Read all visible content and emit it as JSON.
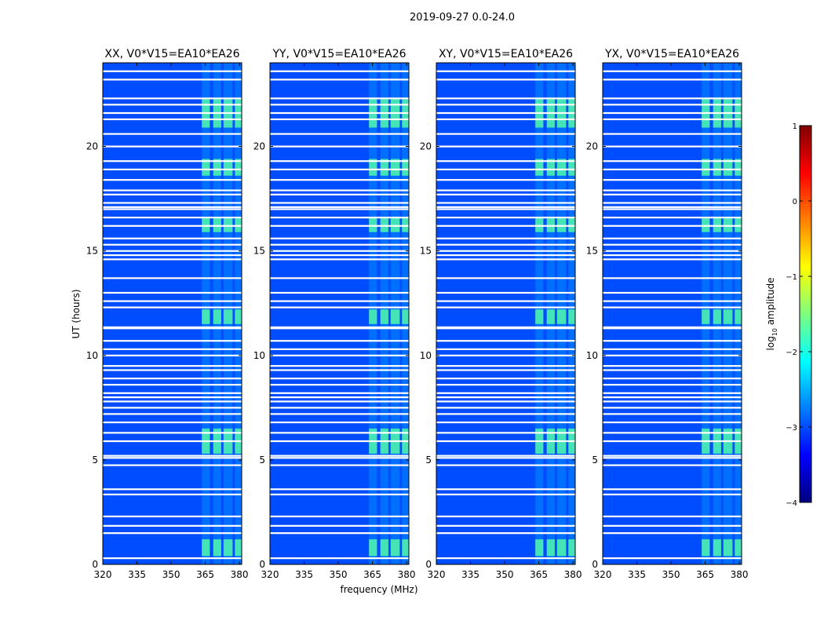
{
  "figure": {
    "suptitle": "2019-09-27 0.0-24.0",
    "xlabel": "frequency (MHz)",
    "ylabel": "UT (hours)"
  },
  "chart_data": {
    "type": "heatmap",
    "x_range": [
      320,
      381
    ],
    "x_ticks": [
      320,
      335,
      350,
      365,
      380
    ],
    "y_range": [
      0,
      24
    ],
    "y_ticks": [
      0,
      5,
      10,
      15,
      20
    ],
    "panels": [
      {
        "title": "XX, V0*V15=EA10*EA26"
      },
      {
        "title": "YY, V0*V15=EA10*EA26"
      },
      {
        "title": "XY, V0*V15=EA10*EA26"
      },
      {
        "title": "YX, V0*V15=EA10*EA26"
      }
    ],
    "colorbar": {
      "label_main": "log",
      "label_sub": "10",
      "label_tail": " amplitude",
      "range": [
        -4,
        1
      ],
      "ticks": [
        "1",
        "0",
        "−1",
        "−2",
        "−3",
        "−4"
      ],
      "colors": [
        "#00007f",
        "#0000ff",
        "#007fff",
        "#00ffff",
        "#7fff7f",
        "#ffff00",
        "#ff7f00",
        "#ff0000",
        "#7f0000"
      ]
    },
    "flagged_hours": [
      0.3,
      1.5,
      1.85,
      2.3,
      3.35,
      3.6,
      4.75,
      5.1,
      5.2,
      5.9,
      6.3,
      6.8,
      7.2,
      7.5,
      7.8,
      8.0,
      8.2,
      8.6,
      8.9,
      9.3,
      9.5,
      10.0,
      10.3,
      10.7,
      11.3,
      11.35,
      12.3,
      12.6,
      13.0,
      13.7,
      14.6,
      14.8,
      15.0,
      15.3,
      15.6,
      16.2,
      16.6,
      17.0,
      17.1,
      17.3,
      17.7,
      17.9,
      18.4,
      18.9,
      19.3,
      20.0,
      20.6,
      21.3,
      21.6,
      22.0,
      22.3,
      23.2,
      23.6
    ],
    "rfi_bands_mhz": [
      [
        363.5,
        367.0
      ],
      [
        368.5,
        372.0
      ],
      [
        373.0,
        377.0
      ],
      [
        378.0,
        381.0
      ]
    ],
    "rfi_active_hours": [
      [
        0.4,
        1.2
      ],
      [
        5.3,
        6.5
      ],
      [
        11.5,
        12.2
      ],
      [
        15.9,
        16.6
      ],
      [
        18.6,
        19.4
      ],
      [
        20.9,
        22.3
      ]
    ],
    "background_log_amplitude": -3.0,
    "rfi_log_amplitude": -1.6
  }
}
